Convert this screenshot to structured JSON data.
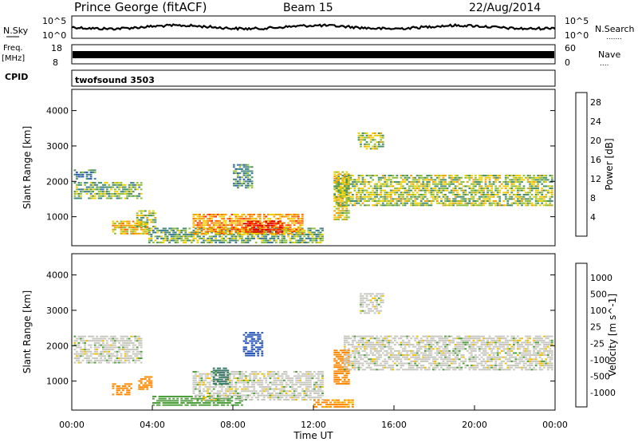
{
  "header": {
    "station": "Prince George (fitACF)",
    "beam": "Beam 15",
    "date": "22/Aug/2014"
  },
  "panels": {
    "nsky": {
      "label": "N.Sky",
      "ticks": [
        "10^5",
        "10^0"
      ],
      "right_ticks": [
        "10^5",
        "10^0"
      ],
      "right_label": "N.Search"
    },
    "freq": {
      "label_top": "Freq.",
      "label_bottom": "[MHz]",
      "ticks": [
        "18",
        "8"
      ],
      "right_ticks": [
        "60",
        "0"
      ],
      "right_label": "Nave"
    },
    "cpid": {
      "label": "CPID",
      "value": "twofsound 3503"
    }
  },
  "colors": {
    "power": [
      "#1a2ee0",
      "#2b57b8",
      "#3a7a9a",
      "#4a8f6a",
      "#8fbf3a",
      "#f0d000",
      "#f0a000",
      "#ff6a00",
      "#ff2a00",
      "#e00000"
    ],
    "velocity": [
      "#1a2ee0",
      "#2b57b8",
      "#3a7a6a",
      "#4f9f3f",
      "#7fd040",
      "#c8c8c0",
      "#e0e0d0",
      "#f0c000",
      "#ff8800",
      "#ff4400",
      "#e00000"
    ]
  },
  "chart_data": [
    {
      "type": "heatmap",
      "panel": "power",
      "ylabel": "Slant Range [km]",
      "yticks": [
        1000,
        2000,
        3000,
        4000
      ],
      "ylim": [
        180,
        4600
      ],
      "xlim": [
        0,
        24
      ],
      "colorbar": {
        "label": "Power [dB]",
        "ticks": [
          "4",
          "8",
          "12",
          "16",
          "20",
          "24",
          "28"
        ],
        "range": [
          0,
          30
        ]
      },
      "echo_regions": [
        {
          "t0": 0.1,
          "t1": 3.5,
          "r0": 1500,
          "r1": 2000,
          "level": 12
        },
        {
          "t0": 0.1,
          "t1": 1.2,
          "r0": 2050,
          "r1": 2350,
          "level": 8
        },
        {
          "t0": 2.0,
          "t1": 3.8,
          "r0": 500,
          "r1": 900,
          "level": 18
        },
        {
          "t0": 3.2,
          "t1": 4.2,
          "r0": 700,
          "r1": 1200,
          "level": 14
        },
        {
          "t0": 3.8,
          "t1": 12.5,
          "r0": 250,
          "r1": 700,
          "level": 12
        },
        {
          "t0": 6.0,
          "t1": 11.5,
          "r0": 500,
          "r1": 1100,
          "level": 20
        },
        {
          "t0": 8.5,
          "t1": 10.5,
          "r0": 550,
          "r1": 900,
          "level": 28
        },
        {
          "t0": 13.0,
          "t1": 13.8,
          "r0": 900,
          "r1": 2300,
          "level": 16
        },
        {
          "t0": 13.0,
          "t1": 23.9,
          "r0": 1300,
          "r1": 2200,
          "level": 14
        },
        {
          "t0": 14.2,
          "t1": 15.5,
          "r0": 2900,
          "r1": 3400,
          "level": 14
        },
        {
          "t0": 8.0,
          "t1": 9.0,
          "r0": 1800,
          "r1": 2500,
          "level": 10
        }
      ]
    },
    {
      "type": "heatmap",
      "panel": "velocity",
      "ylabel": "Slant Range [km]",
      "xlabel": "Time UT",
      "yticks": [
        1000,
        2000,
        3000,
        4000
      ],
      "xticks": [
        "00:00",
        "04:00",
        "08:00",
        "12:00",
        "16:00",
        "20:00",
        "00:00"
      ],
      "ylim": [
        180,
        4600
      ],
      "xlim": [
        0,
        24
      ],
      "colorbar": {
        "label": "Velocity [m s^-1]",
        "ticks": [
          "1000",
          "500",
          "100",
          "25",
          "-25",
          "-100",
          "-500",
          "-1000"
        ]
      },
      "echo_regions": [
        {
          "t0": 0.1,
          "t1": 3.5,
          "r0": 1500,
          "r1": 2300,
          "velocity": 0
        },
        {
          "t0": 2.0,
          "t1": 3.0,
          "r0": 600,
          "r1": 950,
          "velocity": -200
        },
        {
          "t0": 3.3,
          "t1": 4.0,
          "r0": 750,
          "r1": 1150,
          "velocity": -300
        },
        {
          "t0": 4.0,
          "t1": 8.5,
          "r0": 300,
          "r1": 600,
          "velocity": 60
        },
        {
          "t0": 6.0,
          "t1": 12.5,
          "r0": 450,
          "r1": 1300,
          "velocity": 0
        },
        {
          "t0": 7.0,
          "t1": 7.8,
          "r0": 900,
          "r1": 1400,
          "velocity": 400
        },
        {
          "t0": 8.5,
          "t1": 9.5,
          "r0": 1700,
          "r1": 2400,
          "velocity": 600
        },
        {
          "t0": 12.0,
          "t1": 14.0,
          "r0": 250,
          "r1": 500,
          "velocity": -120
        },
        {
          "t0": 13.0,
          "t1": 13.8,
          "r0": 900,
          "r1": 1900,
          "velocity": -300
        },
        {
          "t0": 13.5,
          "t1": 23.9,
          "r0": 1300,
          "r1": 2300,
          "velocity": 0
        },
        {
          "t0": 14.3,
          "t1": 15.5,
          "r0": 2900,
          "r1": 3500,
          "velocity": 0
        }
      ]
    }
  ]
}
